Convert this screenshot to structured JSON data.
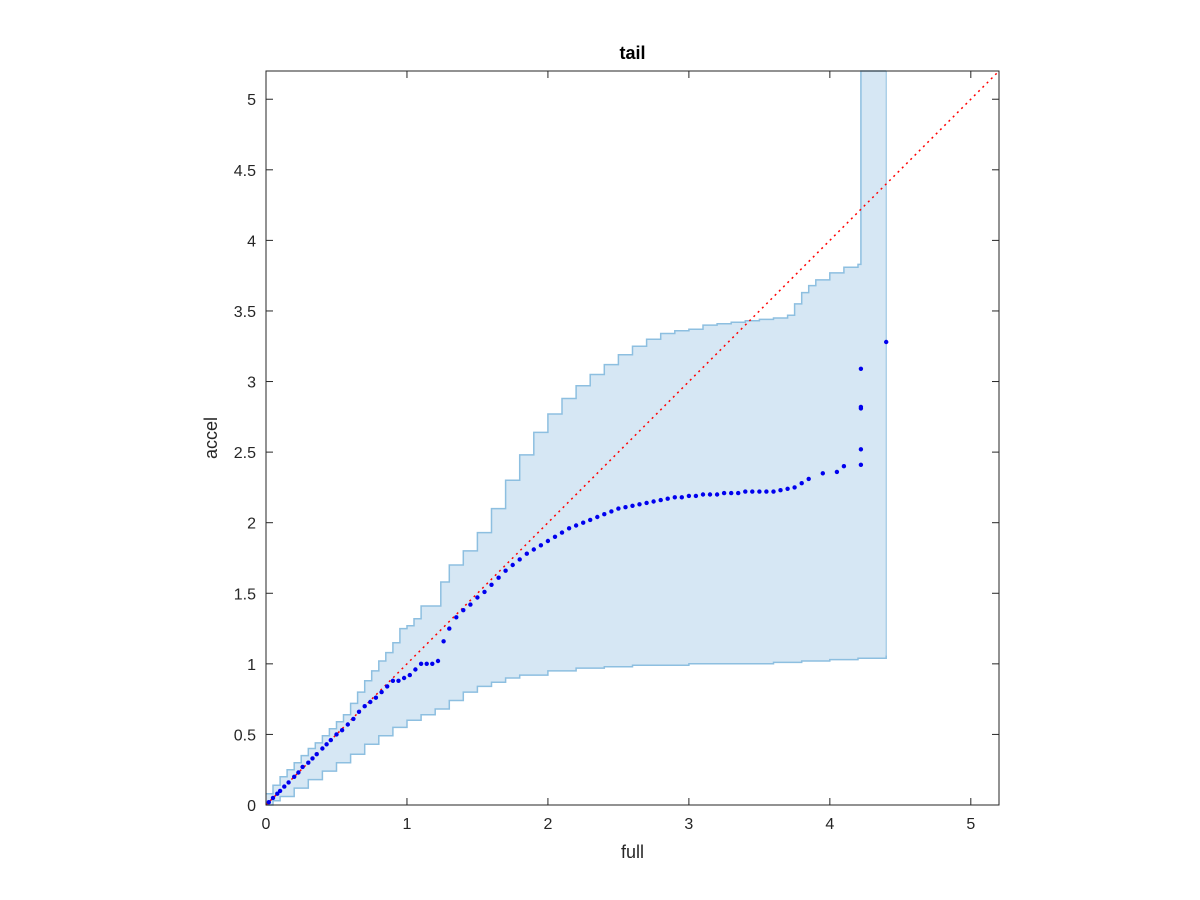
{
  "chart_data": {
    "type": "scatter",
    "title": "tail",
    "xlabel": "full",
    "ylabel": "accel",
    "xlim": [
      0,
      5.2
    ],
    "ylim": [
      0,
      5.2
    ],
    "xticks": [
      0,
      1,
      2,
      3,
      4,
      5
    ],
    "yticks": [
      0,
      0.5,
      1,
      1.5,
      2,
      2.5,
      3,
      3.5,
      4,
      4.5,
      5
    ],
    "xtick_labels": [
      "0",
      "1",
      "2",
      "3",
      "4",
      "5"
    ],
    "ytick_labels": [
      "0",
      "0.5",
      "1",
      "1.5",
      "2",
      "2.5",
      "3",
      "3.5",
      "4",
      "4.5",
      "5"
    ],
    "grid": false,
    "colors": {
      "points": "#0000ee",
      "reference": "#ff0000",
      "band_fill": "#d6e7f4",
      "band_edge": "#8dbfe0",
      "axes": "#262626"
    },
    "reference_line": {
      "x": [
        0,
        5.2
      ],
      "y": [
        0,
        5.2
      ],
      "style": "dotted"
    },
    "confidence_band": {
      "upper": {
        "x": [
          0,
          0.05,
          0.1,
          0.15,
          0.2,
          0.25,
          0.3,
          0.35,
          0.4,
          0.45,
          0.5,
          0.55,
          0.6,
          0.65,
          0.7,
          0.75,
          0.8,
          0.85,
          0.9,
          0.95,
          1.0,
          1.05,
          1.1,
          1.15,
          1.2,
          1.24,
          1.3,
          1.4,
          1.5,
          1.6,
          1.7,
          1.8,
          1.9,
          2.0,
          2.1,
          2.2,
          2.3,
          2.4,
          2.5,
          2.6,
          2.7,
          2.8,
          2.9,
          3.0,
          3.1,
          3.2,
          3.3,
          3.4,
          3.5,
          3.6,
          3.7,
          3.75,
          3.8,
          3.85,
          3.9,
          4.0,
          4.1,
          4.2,
          4.22,
          4.22,
          4.4
        ],
        "y": [
          0.08,
          0.14,
          0.2,
          0.25,
          0.3,
          0.35,
          0.4,
          0.44,
          0.49,
          0.54,
          0.59,
          0.64,
          0.72,
          0.8,
          0.88,
          0.95,
          1.02,
          1.08,
          1.15,
          1.25,
          1.27,
          1.32,
          1.41,
          1.41,
          1.41,
          1.58,
          1.7,
          1.8,
          1.93,
          2.1,
          2.3,
          2.48,
          2.64,
          2.77,
          2.88,
          2.97,
          3.05,
          3.12,
          3.19,
          3.25,
          3.3,
          3.34,
          3.36,
          3.37,
          3.4,
          3.41,
          3.42,
          3.43,
          3.44,
          3.45,
          3.47,
          3.55,
          3.63,
          3.68,
          3.72,
          3.77,
          3.81,
          3.83,
          3.83,
          5.2,
          5.2
        ]
      },
      "lower": {
        "x": [
          0,
          0.05,
          0.1,
          0.2,
          0.3,
          0.4,
          0.5,
          0.6,
          0.7,
          0.8,
          0.9,
          1.0,
          1.1,
          1.2,
          1.3,
          1.4,
          1.5,
          1.6,
          1.7,
          1.8,
          2.0,
          2.2,
          2.4,
          2.6,
          2.8,
          3.0,
          3.2,
          3.4,
          3.6,
          3.8,
          4.0,
          4.2,
          4.4
        ],
        "y": [
          0.0,
          0.03,
          0.06,
          0.12,
          0.18,
          0.24,
          0.3,
          0.36,
          0.43,
          0.49,
          0.55,
          0.6,
          0.64,
          0.68,
          0.74,
          0.8,
          0.84,
          0.87,
          0.9,
          0.92,
          0.95,
          0.97,
          0.98,
          0.99,
          0.99,
          1.0,
          1.0,
          1.0,
          1.01,
          1.02,
          1.03,
          1.04,
          1.06
        ]
      }
    },
    "series": [
      {
        "x": [
          0.02,
          0.05,
          0.08,
          0.1,
          0.13,
          0.16,
          0.2,
          0.23,
          0.26,
          0.3,
          0.33,
          0.36,
          0.4,
          0.43,
          0.46,
          0.5,
          0.54,
          0.58,
          0.62,
          0.66,
          0.7,
          0.74,
          0.78,
          0.82,
          0.86,
          0.9,
          0.94,
          0.98,
          1.02,
          1.06,
          1.1,
          1.14,
          1.18,
          1.22,
          1.26,
          1.3,
          1.35,
          1.4,
          1.45,
          1.5,
          1.55,
          1.6,
          1.65,
          1.7,
          1.75,
          1.8,
          1.85,
          1.9,
          1.95,
          2.0,
          2.05,
          2.1,
          2.15,
          2.2,
          2.25,
          2.3,
          2.35,
          2.4,
          2.45,
          2.5,
          2.55,
          2.6,
          2.65,
          2.7,
          2.75,
          2.8,
          2.85,
          2.9,
          2.95,
          3.0,
          3.05,
          3.1,
          3.15,
          3.2,
          3.25,
          3.3,
          3.35,
          3.4,
          3.45,
          3.5,
          3.55,
          3.6,
          3.65,
          3.7,
          3.75,
          3.8,
          3.85,
          3.95,
          4.05,
          4.1,
          4.22,
          4.22,
          4.22,
          4.22,
          4.22,
          4.4
        ],
        "y": [
          0.02,
          0.05,
          0.08,
          0.1,
          0.13,
          0.16,
          0.2,
          0.23,
          0.27,
          0.3,
          0.33,
          0.36,
          0.4,
          0.43,
          0.46,
          0.5,
          0.53,
          0.57,
          0.61,
          0.66,
          0.7,
          0.73,
          0.76,
          0.8,
          0.84,
          0.88,
          0.88,
          0.9,
          0.92,
          0.96,
          1.0,
          1.0,
          1.0,
          1.02,
          1.16,
          1.25,
          1.33,
          1.38,
          1.42,
          1.47,
          1.51,
          1.56,
          1.61,
          1.66,
          1.7,
          1.74,
          1.78,
          1.81,
          1.84,
          1.87,
          1.9,
          1.93,
          1.96,
          1.98,
          2.0,
          2.02,
          2.04,
          2.06,
          2.08,
          2.1,
          2.11,
          2.12,
          2.13,
          2.14,
          2.15,
          2.16,
          2.17,
          2.18,
          2.18,
          2.19,
          2.19,
          2.2,
          2.2,
          2.2,
          2.21,
          2.21,
          2.21,
          2.22,
          2.22,
          2.22,
          2.22,
          2.22,
          2.23,
          2.24,
          2.25,
          2.28,
          2.31,
          2.35,
          2.36,
          2.4,
          2.41,
          2.52,
          2.81,
          2.82,
          3.09,
          3.28
        ]
      }
    ]
  }
}
